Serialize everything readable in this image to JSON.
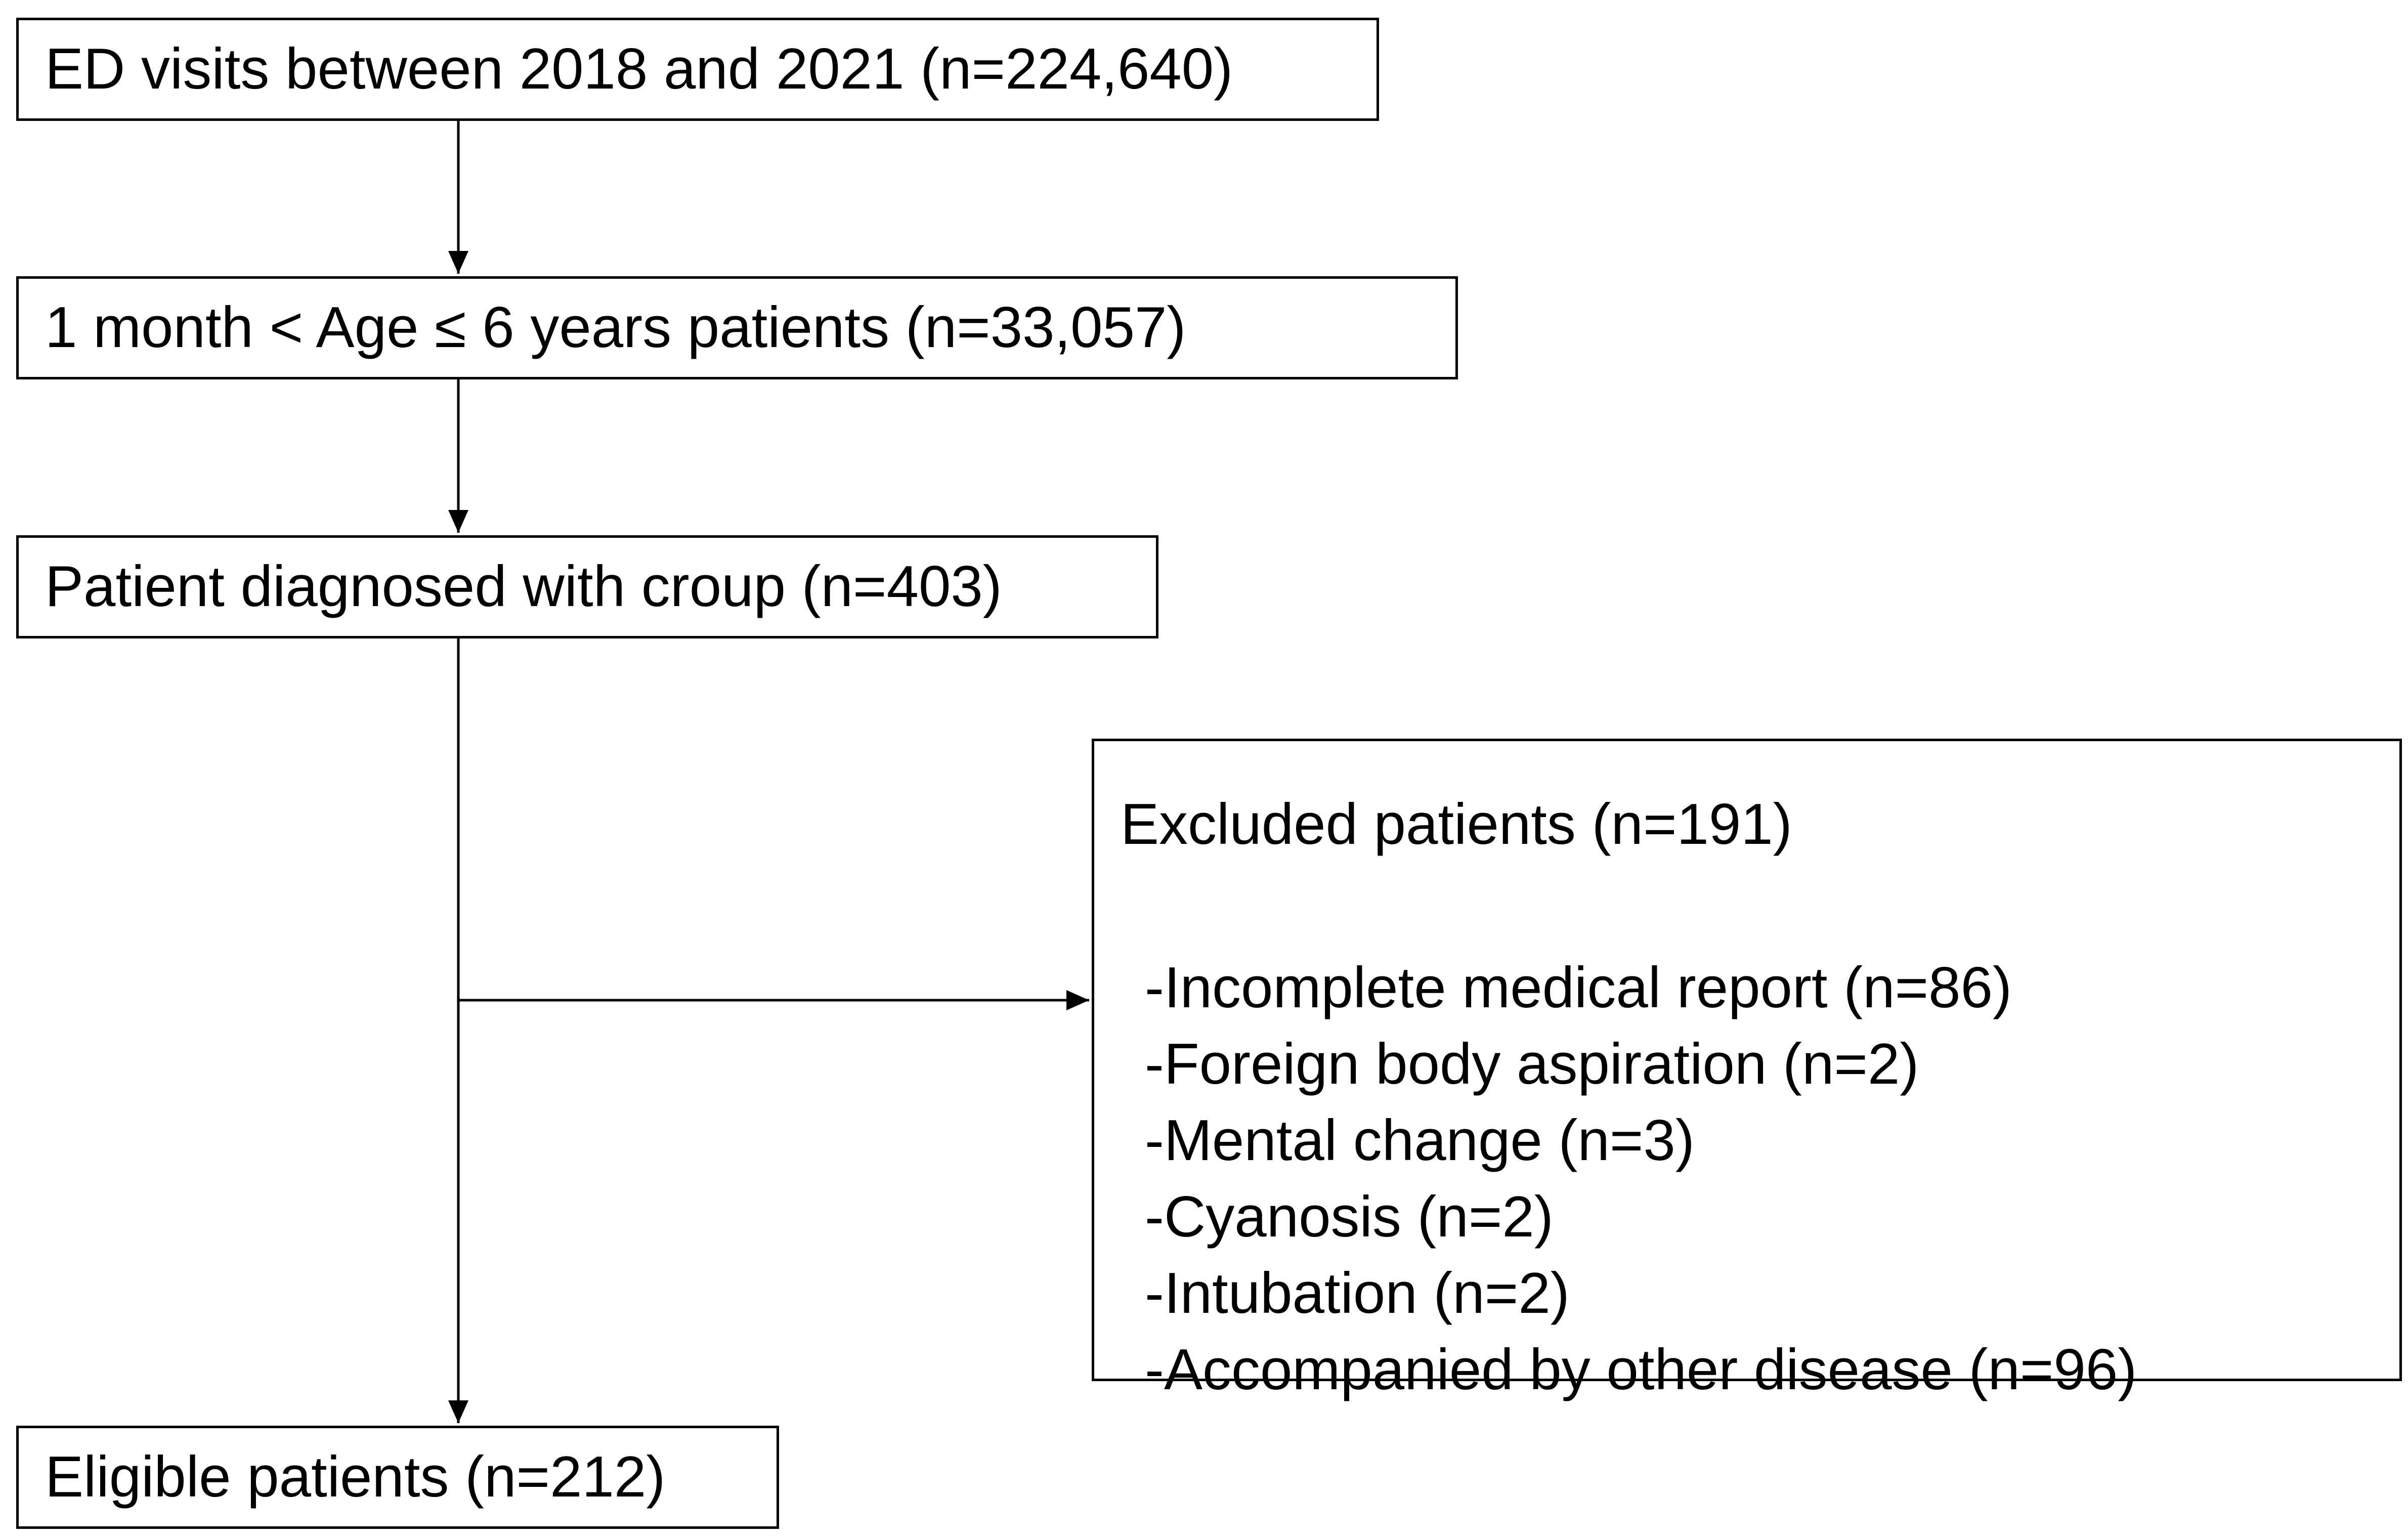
{
  "flowchart": {
    "ed_visits": "ED visits between 2018 and 2021 (n=224,640)",
    "age_filter": "1 month < Age ≤ 6 years patients (n=33,057)",
    "croup": "Patient diagnosed with croup (n=403)",
    "excluded": {
      "title": "Excluded patients (n=191)",
      "reasons": [
        "-Incomplete medical report (n=86)",
        "-Foreign body aspiration (n=2)",
        "-Mental change (n=3)",
        "-Cyanosis (n=2)",
        "-Intubation (n=2)",
        "-Accompanied by other disease (n=96)"
      ]
    },
    "eligible": "Eligible patients (n=212)"
  },
  "colors": {
    "stroke": "#000000",
    "background": "#ffffff"
  }
}
